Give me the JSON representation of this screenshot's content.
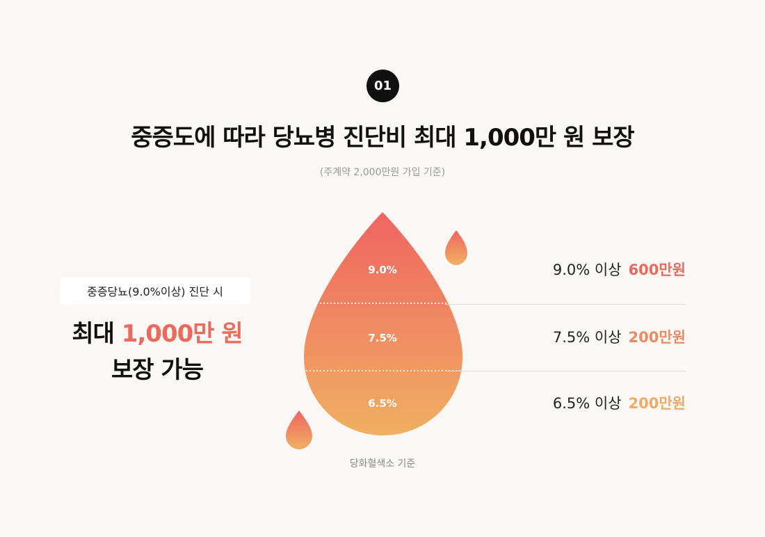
{
  "badge": "01",
  "title": "중증도에 따라 당뇨병 진단비 최대 1,000만 원 보장",
  "subtitle": "(주계약 2,000만원 가입 기준)",
  "left": {
    "condition": "중증당뇨(9.0%이상) 진단 시",
    "max_prefix": "최대 ",
    "max_amount": "1,000만 원",
    "max_line2": "보장 가능"
  },
  "drop": {
    "levels": [
      "9.0%",
      "7.5%",
      "6.5%"
    ],
    "gradient_top": "#ef6461",
    "gradient_bottom": "#f0b062"
  },
  "rows": [
    {
      "condition": "9.0% 이상",
      "amount": "600만원",
      "color": "#ea6a5c"
    },
    {
      "condition": "7.5% 이상",
      "amount": "200만원",
      "color": "#ee8a62"
    },
    {
      "condition": "6.5% 이상",
      "amount": "200만원",
      "color": "#efaa66"
    }
  ],
  "footnote": "당화혈색소 기준"
}
